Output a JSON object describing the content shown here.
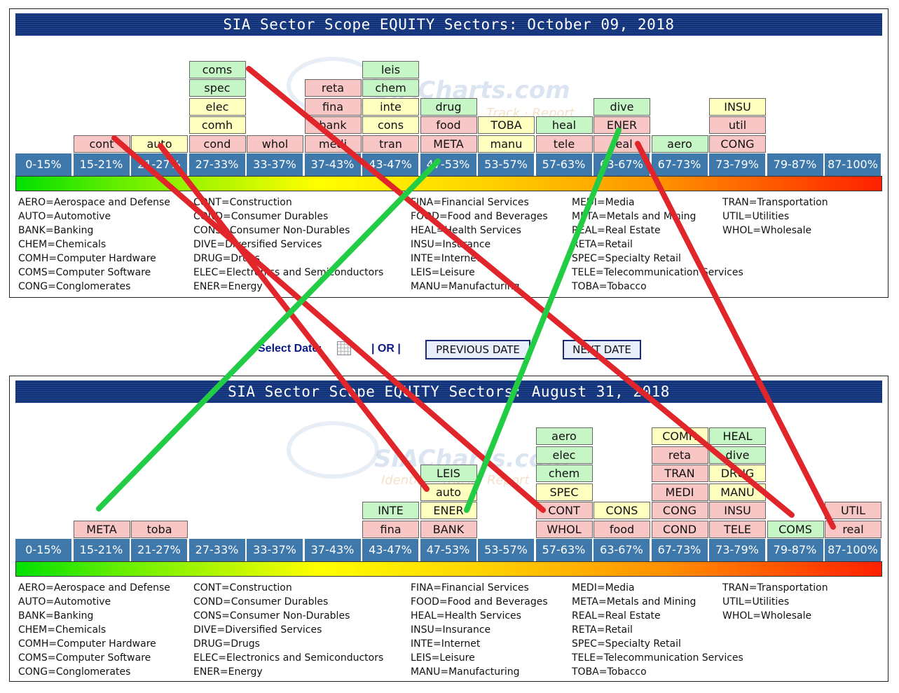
{
  "panels": [
    {
      "title": "SIA Sector Scope EQUITY Sectors: October 09, 2018",
      "watermark": "SIACharts.com",
      "watermark_sub": "Track · Report",
      "ranges": [
        "0-15%",
        "15-21%",
        "21-27%",
        "27-33%",
        "33-37%",
        "37-43%",
        "43-47%",
        "47-53%",
        "53-57%",
        "57-63%",
        "63-67%",
        "67-73%",
        "73-79%",
        "79-87%",
        "87-100%"
      ],
      "columns": [
        [],
        [
          {
            "t": "cont",
            "c": "red"
          }
        ],
        [
          {
            "t": "auto",
            "c": "yellow"
          }
        ],
        [
          {
            "t": "cond",
            "c": "red"
          },
          {
            "t": "comh",
            "c": "yellow"
          },
          {
            "t": "elec",
            "c": "yellow"
          },
          {
            "t": "spec",
            "c": "green"
          },
          {
            "t": "coms",
            "c": "green"
          }
        ],
        [
          {
            "t": "whol",
            "c": "red"
          }
        ],
        [
          {
            "t": "medi",
            "c": "red"
          },
          {
            "t": "bank",
            "c": "red"
          },
          {
            "t": "fina",
            "c": "red"
          },
          {
            "t": "reta",
            "c": "red"
          }
        ],
        [
          {
            "t": "tran",
            "c": "red"
          },
          {
            "t": "cons",
            "c": "yellow"
          },
          {
            "t": "inte",
            "c": "yellow"
          },
          {
            "t": "chem",
            "c": "green"
          },
          {
            "t": "leis",
            "c": "green"
          }
        ],
        [
          {
            "t": "META",
            "c": "red"
          },
          {
            "t": "food",
            "c": "red"
          },
          {
            "t": "drug",
            "c": "green"
          }
        ],
        [
          {
            "t": "manu",
            "c": "yellow"
          },
          {
            "t": "TOBA",
            "c": "yellow"
          }
        ],
        [
          {
            "t": "tele",
            "c": "red"
          },
          {
            "t": "heal",
            "c": "green"
          }
        ],
        [
          {
            "t": "real",
            "c": "red"
          },
          {
            "t": "ENER",
            "c": "red"
          },
          {
            "t": "dive",
            "c": "green"
          }
        ],
        [
          {
            "t": "aero",
            "c": "green"
          }
        ],
        [
          {
            "t": "CONG",
            "c": "red"
          },
          {
            "t": "util",
            "c": "red"
          },
          {
            "t": "INSU",
            "c": "yellow"
          }
        ],
        [],
        []
      ]
    },
    {
      "title": "SIA Sector Scope EQUITY Sectors: August 31, 2018",
      "watermark": "SIACharts.com",
      "watermark_sub": "Identify · Track · Report",
      "ranges": [
        "0-15%",
        "15-21%",
        "21-27%",
        "27-33%",
        "33-37%",
        "37-43%",
        "43-47%",
        "47-53%",
        "53-57%",
        "57-63%",
        "63-67%",
        "67-73%",
        "73-79%",
        "79-87%",
        "87-100%"
      ],
      "columns": [
        [],
        [
          {
            "t": "META",
            "c": "red"
          }
        ],
        [
          {
            "t": "toba",
            "c": "red"
          }
        ],
        [],
        [],
        [],
        [
          {
            "t": "fina",
            "c": "red"
          },
          {
            "t": "INTE",
            "c": "green"
          }
        ],
        [
          {
            "t": "BANK",
            "c": "red"
          },
          {
            "t": "ENER",
            "c": "yellow"
          },
          {
            "t": "auto",
            "c": "yellow"
          },
          {
            "t": "LEIS",
            "c": "green"
          }
        ],
        [],
        [
          {
            "t": "WHOL",
            "c": "red"
          },
          {
            "t": "CONT",
            "c": "red"
          },
          {
            "t": "SPEC",
            "c": "yellow"
          },
          {
            "t": "chem",
            "c": "green"
          },
          {
            "t": "elec",
            "c": "green"
          },
          {
            "t": "aero",
            "c": "green"
          }
        ],
        [
          {
            "t": "food",
            "c": "red"
          },
          {
            "t": "CONS",
            "c": "yellow"
          }
        ],
        [
          {
            "t": "COND",
            "c": "red"
          },
          {
            "t": "CONG",
            "c": "red"
          },
          {
            "t": "MEDI",
            "c": "red"
          },
          {
            "t": "TRAN",
            "c": "red"
          },
          {
            "t": "reta",
            "c": "red"
          },
          {
            "t": "COMH",
            "c": "yellow"
          }
        ],
        [
          {
            "t": "TELE",
            "c": "red"
          },
          {
            "t": "INSU",
            "c": "red"
          },
          {
            "t": "MANU",
            "c": "yellow"
          },
          {
            "t": "DRUG",
            "c": "yellow"
          },
          {
            "t": "dive",
            "c": "green"
          },
          {
            "t": "HEAL",
            "c": "green"
          }
        ],
        [
          {
            "t": "COMS",
            "c": "green"
          }
        ],
        [
          {
            "t": "real",
            "c": "red"
          },
          {
            "t": "UTIL",
            "c": "red"
          }
        ]
      ]
    }
  ],
  "legend": [
    [
      "AERO=Aerospace and Defense",
      "AUTO=Automotive",
      "BANK=Banking",
      "CHEM=Chemicals",
      "COMH=Computer Hardware",
      "COMS=Computer Software",
      "CONG=Conglomerates"
    ],
    [
      "CONT=Construction",
      "COND=Consumer Durables",
      "CONS=Consumer Non-Durables",
      "DIVE=Diversified Services",
      "DRUG=Drugs",
      "ELEC=Electronics and Semiconductors",
      "ENER=Energy"
    ],
    [
      "FINA=Financial Services",
      "FOOD=Food and Beverages",
      "HEAL=Health Services",
      "INSU=Insurance",
      "INTE=Internet",
      "LEIS=Leisure",
      "MANU=Manufacturing"
    ],
    [
      "MEDI=Media",
      "META=Metals and Mining",
      "REAL=Real Estate",
      "RETA=Retail",
      "SPEC=Specialty Retail",
      "TELE=Telecommunication Services",
      "TOBA=Tobacco"
    ],
    [
      "TRAN=Transportation",
      "UTIL=Utilities",
      "WHOL=Wholesale"
    ]
  ],
  "date_selector": {
    "label": "Select Date:",
    "or_text": "| OR |",
    "previous_label": "PREVIOUS DATE",
    "next_label": "NEXT DATE"
  },
  "colors": {
    "red_cell": "#f9c6c6",
    "yellow_cell": "#ffffc0",
    "green_cell": "#c6f5c6",
    "range_bar": "#3f78aa",
    "down_arrow": "#e0262a",
    "up_arrow": "#22cc44"
  },
  "chart_data": [
    {
      "type": "table",
      "title": "SIA Sector Scope EQUITY Sectors: October 09, 2018",
      "bins": [
        "0-15%",
        "15-21%",
        "21-27%",
        "27-33%",
        "33-37%",
        "37-43%",
        "43-47%",
        "47-53%",
        "53-57%",
        "57-63%",
        "63-67%",
        "67-73%",
        "73-79%",
        "79-87%",
        "87-100%"
      ],
      "sectors_by_bin": {
        "15-21%": [
          "cont"
        ],
        "21-27%": [
          "auto"
        ],
        "27-33%": [
          "cond",
          "comh",
          "elec",
          "spec",
          "coms"
        ],
        "33-37%": [
          "whol"
        ],
        "37-43%": [
          "medi",
          "bank",
          "fina",
          "reta"
        ],
        "43-47%": [
          "tran",
          "cons",
          "inte",
          "chem",
          "leis"
        ],
        "47-53%": [
          "META",
          "food",
          "drug"
        ],
        "53-57%": [
          "manu",
          "TOBA"
        ],
        "57-63%": [
          "tele",
          "heal"
        ],
        "63-67%": [
          "real",
          "ENER",
          "dive"
        ],
        "67-73%": [
          "aero"
        ],
        "73-79%": [
          "CONG",
          "util",
          "INSU"
        ]
      }
    },
    {
      "type": "table",
      "title": "SIA Sector Scope EQUITY Sectors: August 31, 2018",
      "bins": [
        "0-15%",
        "15-21%",
        "21-27%",
        "27-33%",
        "33-37%",
        "37-43%",
        "43-47%",
        "47-53%",
        "53-57%",
        "57-63%",
        "63-67%",
        "67-73%",
        "73-79%",
        "79-87%",
        "87-100%"
      ],
      "sectors_by_bin": {
        "15-21%": [
          "META"
        ],
        "21-27%": [
          "toba"
        ],
        "43-47%": [
          "fina",
          "INTE"
        ],
        "47-53%": [
          "BANK",
          "ENER",
          "auto",
          "LEIS"
        ],
        "57-63%": [
          "WHOL",
          "CONT",
          "SPEC",
          "chem",
          "elec",
          "aero"
        ],
        "63-67%": [
          "food",
          "CONS"
        ],
        "67-73%": [
          "COND",
          "CONG",
          "MEDI",
          "TRAN",
          "reta",
          "COMH"
        ],
        "73-79%": [
          "TELE",
          "INSU",
          "MANU",
          "DRUG",
          "dive",
          "HEAL"
        ],
        "79-87%": [
          "COMS"
        ],
        "87-100%": [
          "real",
          "UTIL"
        ]
      }
    }
  ],
  "arrows": [
    {
      "sector": "cont",
      "from": "October 09, 2018: 15-21%",
      "to": "August 31, 2018: 57-63%",
      "direction": "down"
    },
    {
      "sector": "auto",
      "from": "October 09, 2018: 21-27%",
      "to": "August 31, 2018: 47-53%",
      "direction": "down"
    },
    {
      "sector": "coms",
      "from": "October 09, 2018: 27-33%",
      "to": "August 31, 2018: 79-87%",
      "direction": "down"
    },
    {
      "sector": "real",
      "from": "October 09, 2018: 63-67%",
      "to": "August 31, 2018: 87-100%",
      "direction": "down"
    },
    {
      "sector": "META",
      "from": "October 09, 2018: 47-53%",
      "to": "August 31, 2018: 15-21%",
      "direction": "up"
    },
    {
      "sector": "ENER",
      "from": "October 09, 2018: 63-67%",
      "to": "August 31, 2018: 47-53%",
      "direction": "up"
    }
  ]
}
